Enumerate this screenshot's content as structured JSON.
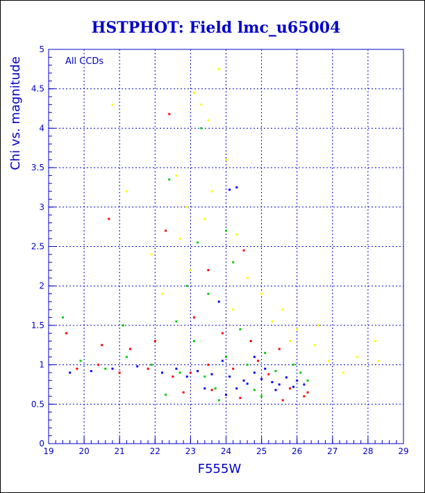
{
  "chart_data": {
    "type": "scatter",
    "title": "HSTPHOT: Field lmc_u65004",
    "xlabel": "F555W",
    "ylabel": "Chi vs. magnitude",
    "annotation": "All CCDs",
    "xlim": [
      19,
      29
    ],
    "ylim": [
      0,
      5
    ],
    "x_ticks": [
      "19",
      "20",
      "21",
      "22",
      "23",
      "24",
      "25",
      "26",
      "27",
      "28",
      "29"
    ],
    "y_ticks": [
      "0",
      "0.5",
      "1",
      "1.5",
      "2",
      "2.5",
      "3",
      "3.5",
      "4",
      "4.5",
      "5"
    ],
    "grid": true,
    "colors": {
      "axis": "#0000cc",
      "grid": "#0000cc",
      "series": [
        "#0000ff",
        "#ff0000",
        "#00cc00",
        "#ffff00"
      ]
    },
    "series": [
      {
        "color": "#0000ff",
        "points": [
          [
            24.1,
            0.85
          ],
          [
            24.5,
            0.8
          ],
          [
            25.0,
            0.82
          ],
          [
            25.3,
            0.78
          ],
          [
            25.7,
            0.84
          ],
          [
            23.6,
            0.88
          ],
          [
            24.8,
            0.9
          ],
          [
            25.5,
            0.75
          ],
          [
            26.0,
            0.8
          ],
          [
            23.2,
            0.92
          ],
          [
            22.6,
            0.95
          ],
          [
            24.3,
            0.7
          ],
          [
            25.1,
            0.95
          ],
          [
            25.9,
            0.72
          ],
          [
            23.9,
            1.05
          ],
          [
            24.6,
            0.76
          ],
          [
            22.2,
            0.9
          ],
          [
            21.5,
            0.98
          ],
          [
            20.8,
            0.95
          ],
          [
            20.2,
            0.92
          ],
          [
            19.6,
            0.9
          ],
          [
            24.3,
            3.25
          ],
          [
            24.1,
            3.22
          ],
          [
            23.8,
            1.8
          ],
          [
            24.8,
            1.1
          ],
          [
            25.4,
            0.68
          ],
          [
            26.2,
            0.75
          ],
          [
            23.4,
            0.7
          ],
          [
            22.9,
            0.85
          ],
          [
            24.0,
            0.62
          ]
        ]
      },
      {
        "color": "#ff0000",
        "points": [
          [
            23.0,
            0.9
          ],
          [
            23.5,
            1.0
          ],
          [
            24.2,
            0.95
          ],
          [
            25.2,
            0.88
          ],
          [
            25.8,
            0.7
          ],
          [
            22.5,
            0.85
          ],
          [
            21.8,
            0.95
          ],
          [
            21.0,
            0.9
          ],
          [
            20.4,
            1.0
          ],
          [
            19.8,
            0.95
          ],
          [
            22.4,
            4.18
          ],
          [
            20.7,
            2.85
          ],
          [
            22.3,
            2.7
          ],
          [
            23.5,
            2.2
          ],
          [
            24.5,
            2.45
          ],
          [
            23.9,
            1.4
          ],
          [
            24.7,
            1.3
          ],
          [
            25.5,
            1.2
          ],
          [
            26.3,
            0.65
          ],
          [
            26.2,
            0.6
          ],
          [
            22.8,
            0.65
          ],
          [
            23.6,
            0.68
          ],
          [
            24.4,
            0.58
          ],
          [
            25.6,
            0.55
          ],
          [
            22.0,
            1.3
          ],
          [
            21.3,
            1.2
          ],
          [
            20.5,
            1.25
          ],
          [
            19.5,
            1.4
          ],
          [
            23.1,
            1.6
          ],
          [
            24.9,
            1.05
          ]
        ]
      },
      {
        "color": "#00cc00",
        "points": [
          [
            22.7,
            0.9
          ],
          [
            23.4,
            0.85
          ],
          [
            24.0,
            1.1
          ],
          [
            24.6,
            1.0
          ],
          [
            25.4,
            0.92
          ],
          [
            21.9,
            1.0
          ],
          [
            21.2,
            1.1
          ],
          [
            20.6,
            0.95
          ],
          [
            19.9,
            1.05
          ],
          [
            19.4,
            1.6
          ],
          [
            21.1,
            1.5
          ],
          [
            22.4,
            3.35
          ],
          [
            23.3,
            4.0
          ],
          [
            23.5,
            1.9
          ],
          [
            24.2,
            2.3
          ],
          [
            22.9,
            2.0
          ],
          [
            25.1,
            1.15
          ],
          [
            25.9,
            1.0
          ],
          [
            26.1,
            0.9
          ],
          [
            23.7,
            0.7
          ],
          [
            22.3,
            0.62
          ],
          [
            24.8,
            0.68
          ],
          [
            23.1,
            1.3
          ],
          [
            24.4,
            1.45
          ],
          [
            22.6,
            1.55
          ],
          [
            26.3,
            0.8
          ],
          [
            23.8,
            0.55
          ],
          [
            25.0,
            0.6
          ],
          [
            23.2,
            2.55
          ],
          [
            24.0,
            2.7
          ]
        ]
      },
      {
        "color": "#ffff00",
        "points": [
          [
            23.8,
            4.75
          ],
          [
            23.3,
            4.3
          ],
          [
            23.5,
            4.1
          ],
          [
            23.1,
            4.45
          ],
          [
            22.6,
            3.4
          ],
          [
            23.6,
            3.2
          ],
          [
            24.0,
            3.6
          ],
          [
            22.9,
            3.0
          ],
          [
            23.4,
            2.85
          ],
          [
            24.3,
            2.65
          ],
          [
            25.0,
            1.9
          ],
          [
            25.6,
            1.7
          ],
          [
            26.0,
            1.45
          ],
          [
            26.5,
            1.25
          ],
          [
            26.9,
            1.05
          ],
          [
            27.3,
            0.9
          ],
          [
            27.7,
            1.1
          ],
          [
            28.2,
            1.3
          ],
          [
            21.2,
            3.2
          ],
          [
            20.8,
            4.3
          ],
          [
            21.9,
            2.4
          ],
          [
            22.2,
            1.9
          ],
          [
            24.6,
            2.1
          ],
          [
            25.3,
            1.55
          ],
          [
            26.6,
            1.5
          ],
          [
            25.8,
            1.3
          ],
          [
            23.0,
            2.2
          ],
          [
            24.2,
            1.7
          ],
          [
            22.7,
            2.6
          ],
          [
            28.3,
            1.05
          ]
        ]
      }
    ]
  }
}
